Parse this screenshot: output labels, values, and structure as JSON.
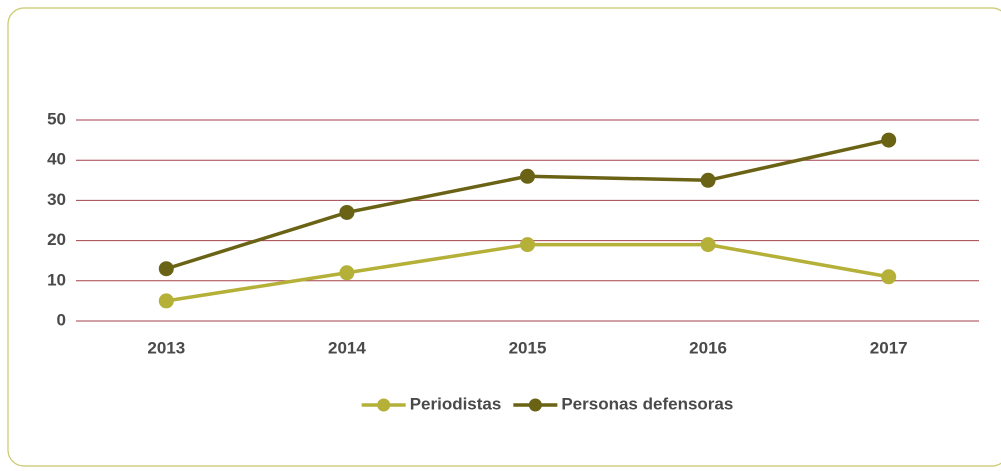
{
  "chart_data": {
    "type": "line",
    "categories": [
      "2013",
      "2014",
      "2015",
      "2016",
      "2017"
    ],
    "series": [
      {
        "name": "Periodistas",
        "color": "#b4b038",
        "values": [
          5,
          12,
          19,
          19,
          11
        ]
      },
      {
        "name": "Personas defensoras",
        "color": "#6a6214",
        "values": [
          13,
          27,
          36,
          35,
          45
        ]
      }
    ],
    "ylim": [
      0,
      50
    ],
    "yticks": [
      0,
      10,
      20,
      30,
      40,
      50
    ],
    "grid": true,
    "grid_color": "#a3424c",
    "legend": "bottom"
  }
}
